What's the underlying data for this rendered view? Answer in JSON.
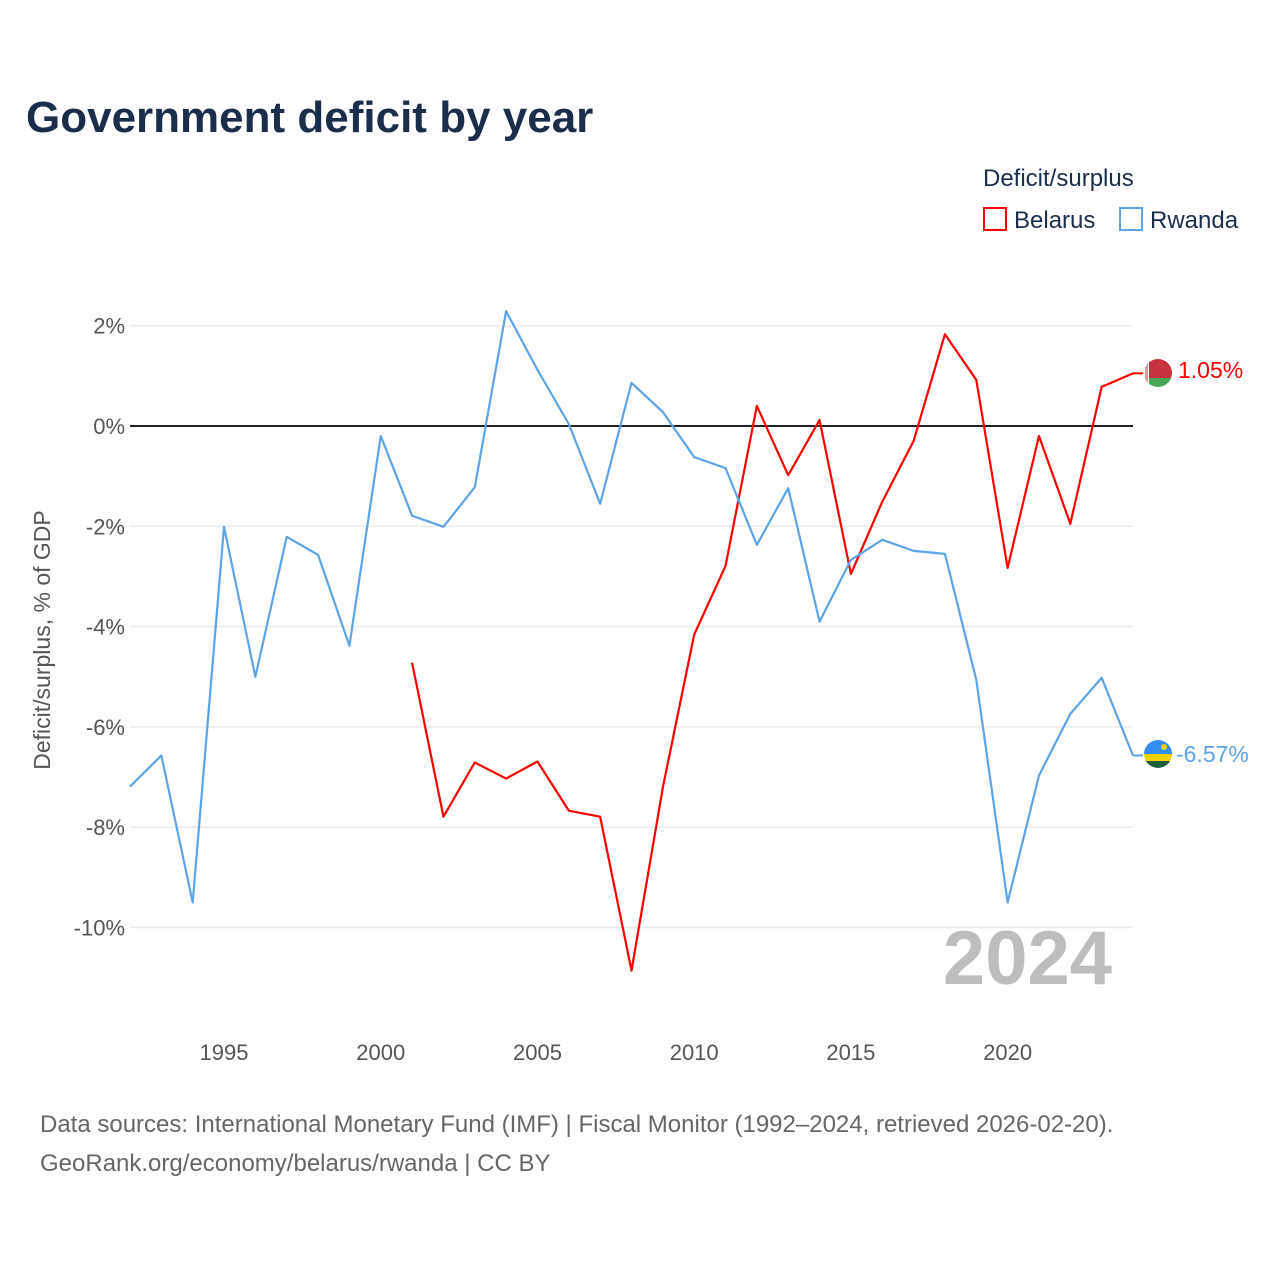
{
  "chart_data": {
    "type": "line",
    "title": "Government deficit by year",
    "xlabel": "",
    "ylabel": "Deficit/surplus, % of GDP",
    "xlim": [
      1992,
      2024
    ],
    "ylim": [
      -11.5,
      3
    ],
    "x_ticks": [
      1995,
      2000,
      2005,
      2010,
      2015,
      2020
    ],
    "y_ticks": [
      2,
      0,
      -2,
      -4,
      -6,
      -8,
      -10
    ],
    "y_tick_labels": [
      "2%",
      "0%",
      "-2%",
      "-4%",
      "-6%",
      "-8%",
      "-10%"
    ],
    "grid": true,
    "legend": {
      "title": "Deficit/surplus",
      "placement": "top-right"
    },
    "year_watermark": "2024",
    "series": [
      {
        "name": "Belarus",
        "color": "#ff0000",
        "end_label": "1.05%",
        "x": [
          2001,
          2002,
          2003,
          2004,
          2005,
          2006,
          2007,
          2008,
          2009,
          2010,
          2011,
          2012,
          2013,
          2014,
          2015,
          2016,
          2017,
          2018,
          2019,
          2020,
          2021,
          2022,
          2023,
          2024
        ],
        "values": [
          -4.72,
          -7.79,
          -6.71,
          -7.03,
          -6.69,
          -7.67,
          -7.79,
          -10.86,
          -7.21,
          -4.16,
          -2.79,
          0.4,
          -0.98,
          0.12,
          -2.95,
          -1.51,
          -0.3,
          1.83,
          0.92,
          -2.83,
          -0.2,
          -1.95,
          0.78,
          1.05
        ]
      },
      {
        "name": "Rwanda",
        "color": "#5ba4e8",
        "end_label": "-6.57%",
        "x": [
          1992,
          1993,
          1994,
          1995,
          1996,
          1997,
          1998,
          1999,
          2000,
          2001,
          2002,
          2003,
          2004,
          2005,
          2006,
          2007,
          2008,
          2009,
          2010,
          2011,
          2012,
          2013,
          2014,
          2015,
          2016,
          2017,
          2018,
          2019,
          2020,
          2021,
          2022,
          2023,
          2024
        ],
        "values": [
          -7.19,
          -6.57,
          -9.5,
          -2.01,
          -5.0,
          -2.21,
          -2.57,
          -4.38,
          -0.2,
          -1.79,
          -2.01,
          -1.22,
          2.29,
          1.12,
          0.04,
          -1.55,
          0.86,
          0.28,
          -0.62,
          -0.84,
          -2.37,
          -1.24,
          -3.9,
          -2.67,
          -2.27,
          -2.49,
          -2.55,
          -5.06,
          -9.5,
          -6.97,
          -5.74,
          -5.02,
          -6.57
        ]
      }
    ]
  },
  "source": {
    "line1": "Data sources: International Monetary Fund (IMF) | Fiscal Monitor (1992–2024, retrieved 2026-02-20).",
    "line2": "GeoRank.org/economy/belarus/rwanda | CC BY"
  }
}
